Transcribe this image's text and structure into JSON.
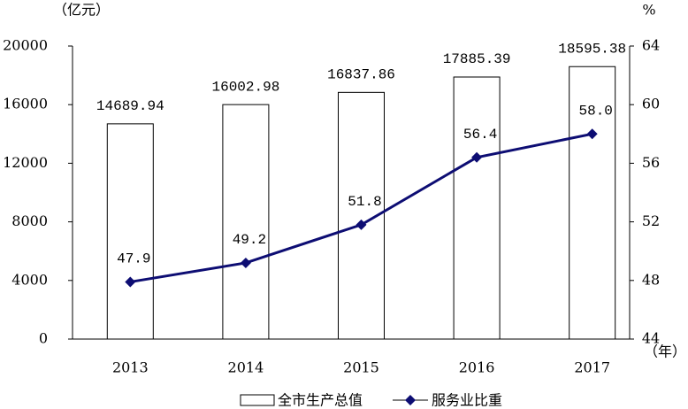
{
  "chart_data": {
    "type": "bar-line",
    "y_label": "（亿元）",
    "y2_label": "%",
    "x_label": "（年）",
    "categories": [
      "2013",
      "2014",
      "2015",
      "2016",
      "2017"
    ],
    "series": [
      {
        "name": "全市生产总值",
        "type": "bar",
        "color": "#ffffff",
        "stroke": "#000000",
        "values": [
          14689.94,
          16002.98,
          16837.86,
          17885.39,
          18595.38
        ]
      },
      {
        "name": "服务业比重",
        "type": "line",
        "axis": "y2",
        "color": "#0d0d73",
        "values": [
          47.9,
          49.2,
          51.8,
          56.4,
          58.0
        ],
        "value_labels": [
          "47.9",
          "49.2",
          "51.8",
          "56.4",
          "58.0"
        ]
      }
    ],
    "ylim": [
      0,
      20000
    ],
    "yticks": [
      0,
      4000,
      8000,
      12000,
      16000,
      20000
    ],
    "y2lim": [
      44,
      64
    ],
    "y2ticks": [
      44,
      48,
      52,
      56,
      60,
      64
    ]
  }
}
